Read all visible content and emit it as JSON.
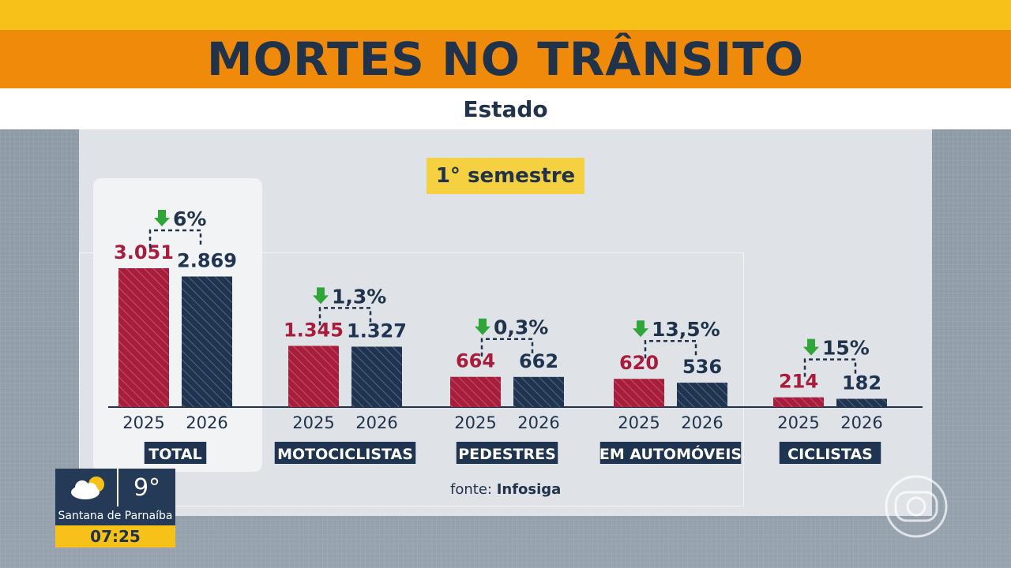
{
  "header": {
    "title": "MORTES NO TRÂNSITO",
    "subtitle": "Estado"
  },
  "period_badge": "1° semestre",
  "source": {
    "prefix": "fonte:",
    "name": "Infosiga"
  },
  "weather": {
    "temperature": "9°",
    "city": "Santana de Parnaíba",
    "time": "07:25",
    "icon": "partly-cloudy-icon"
  },
  "colors": {
    "series_2025": "#a81c3c",
    "series_2026": "#1f3450",
    "arrow": "#2fa53a",
    "label_bg": "#1f3450"
  },
  "chart_data": {
    "type": "bar",
    "title": "MORTES NO TRÂNSITO",
    "subtitle": "Estado",
    "categories": [
      "TOTAL",
      "MOTOCICLISTAS",
      "PEDESTRES",
      "EM AUTOMÓVEIS",
      "CICLISTAS"
    ],
    "series": [
      {
        "name": "2025",
        "values": [
          3051,
          1345,
          664,
          620,
          214
        ],
        "labels": [
          "3.051",
          "1.345",
          "664",
          "620",
          "214"
        ]
      },
      {
        "name": "2026",
        "values": [
          2869,
          1327,
          662,
          536,
          182
        ],
        "labels": [
          "2.869",
          "1.327",
          "662",
          "536",
          "182"
        ]
      }
    ],
    "change_labels": [
      "6%",
      "1,3%",
      "0,3%",
      "13,5%",
      "15%"
    ],
    "change_direction": "down",
    "ylim": [
      0,
      3051
    ],
    "grid": false
  }
}
